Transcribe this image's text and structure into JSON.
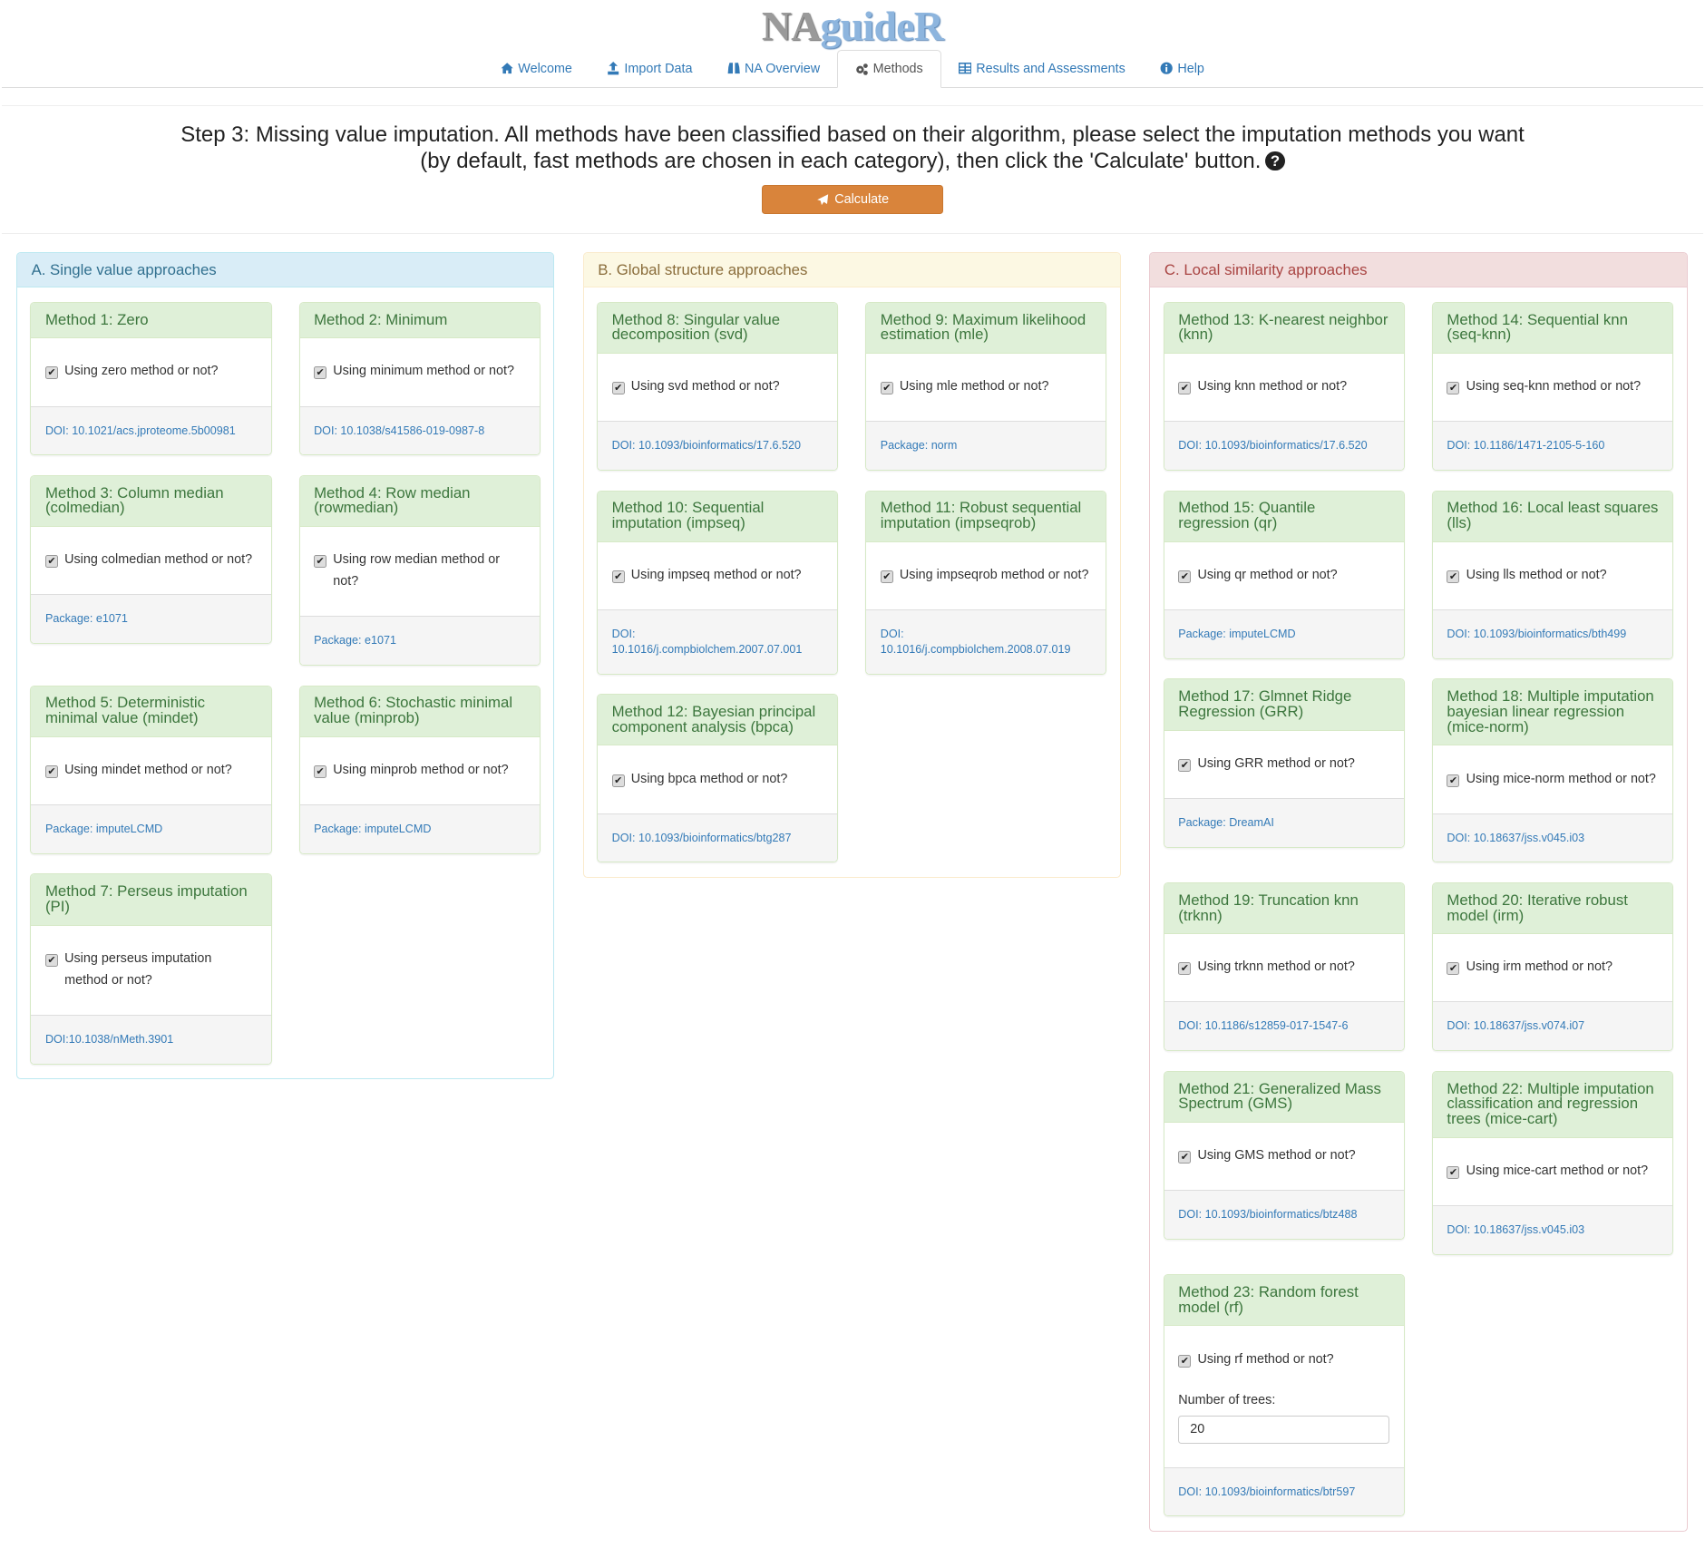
{
  "app": {
    "logo_part1": "NA",
    "logo_part2": "guideR"
  },
  "tabs": [
    {
      "label": "Welcome",
      "icon": "home-icon"
    },
    {
      "label": "Import Data",
      "icon": "upload-icon"
    },
    {
      "label": "NA Overview",
      "icon": "binoculars-icon"
    },
    {
      "label": "Methods",
      "icon": "cogs-icon",
      "active": true
    },
    {
      "label": "Results and Assessments",
      "icon": "table-icon"
    },
    {
      "label": "Help",
      "icon": "info-circle-icon"
    }
  ],
  "step": {
    "text": "Step 3: Missing value imputation. All methods have been classified based on their algorithm, please select the imputation methods you want (by default, fast methods are chosen in each category), then click the 'Calculate' button.",
    "help_icon": "question-circle-icon"
  },
  "calculate": {
    "label": "Calculate",
    "icon": "paper-plane-icon",
    "color": "#d9843b"
  },
  "panels": [
    {
      "title": "A. Single value approaches",
      "bg": "#d9edf7",
      "border": "#bce8f1",
      "color": "#31708f",
      "cards": [
        {
          "title": "Method 1: Zero",
          "check": "Using zero method or not?",
          "checked": true,
          "ref": "DOI: 10.1021/acs.jproteome.5b00981"
        },
        {
          "title": "Method 2: Minimum",
          "check": "Using minimum method or not?",
          "checked": true,
          "ref": "DOI: 10.1038/s41586-019-0987-8"
        },
        {
          "title": "Method 3: Column median (colmedian)",
          "check": "Using colmedian method or not?",
          "checked": true,
          "ref": "Package: e1071"
        },
        {
          "title": "Method 4: Row median (rowmedian)",
          "check": "Using row median method or not?",
          "checked": true,
          "ref": "Package: e1071"
        },
        {
          "title": "Method 5: Deterministic minimal value (mindet)",
          "check": "Using mindet method or not?",
          "checked": true,
          "ref": "Package: imputeLCMD"
        },
        {
          "title": "Method 6: Stochastic minimal value (minprob)",
          "check": "Using minprob method or not?",
          "checked": true,
          "ref": "Package: imputeLCMD"
        },
        {
          "title": "Method 7: Perseus imputation (PI)",
          "check": "Using perseus imputation method or not?",
          "checked": true,
          "ref": "DOI:10.1038/nMeth.3901"
        }
      ]
    },
    {
      "title": "B. Global structure approaches",
      "bg": "#fcf8e3",
      "border": "#faebcc",
      "color": "#8a6d3b",
      "cards": [
        {
          "title": "Method 8: Singular value decomposition (svd)",
          "check": "Using svd method or not?",
          "checked": true,
          "ref": "DOI: 10.1093/bioinformatics/17.6.520"
        },
        {
          "title": "Method 9: Maximum likelihood estimation (mle)",
          "check": "Using mle method or not?",
          "checked": true,
          "ref": "Package: norm"
        },
        {
          "title": "Method 10: Sequential imputation (impseq)",
          "check": "Using impseq method or not?",
          "checked": true,
          "ref": "DOI: 10.1016/j.compbiolchem.2007.07.001"
        },
        {
          "title": "Method 11: Robust sequential imputation (impseqrob)",
          "check": "Using impseqrob method or not?",
          "checked": true,
          "ref": "DOI: 10.1016/j.compbiolchem.2008.07.019"
        },
        {
          "title": "Method 12: Bayesian principal component analysis (bpca)",
          "check": "Using bpca method or not?",
          "checked": true,
          "ref": "DOI: 10.1093/bioinformatics/btg287"
        }
      ]
    },
    {
      "title": "C. Local similarity approaches",
      "bg": "#f2dede",
      "border": "#ebccd1",
      "color": "#a94442",
      "cards": [
        {
          "title": "Method 13: K-nearest neighbor (knn)",
          "check": "Using knn method or not?",
          "checked": true,
          "ref": "DOI: 10.1093/bioinformatics/17.6.520"
        },
        {
          "title": "Method 14: Sequential knn (seq-knn)",
          "check": "Using seq-knn method or not?",
          "checked": true,
          "ref": "DOI: 10.1186/1471-2105-5-160"
        },
        {
          "title": "Method 15: Quantile regression (qr)",
          "check": "Using qr method or not?",
          "checked": true,
          "ref": "Package: imputeLCMD"
        },
        {
          "title": "Method 16: Local least squares (lls)",
          "check": "Using lls method or not?",
          "checked": true,
          "ref": "DOI: 10.1093/bioinformatics/bth499"
        },
        {
          "title": "Method 17: Glmnet Ridge Regression (GRR)",
          "check": "Using GRR method or not?",
          "checked": true,
          "ref": "Package: DreamAI"
        },
        {
          "title": "Method 18: Multiple imputation bayesian linear regression (mice-norm)",
          "check": "Using mice-norm method or not?",
          "checked": true,
          "ref": "DOI: 10.18637/jss.v045.i03"
        },
        {
          "title": "Method 19: Truncation knn (trknn)",
          "check": "Using trknn method or not?",
          "checked": true,
          "ref": "DOI: 10.1186/s12859-017-1547-6"
        },
        {
          "title": "Method 20: Iterative robust model (irm)",
          "check": "Using irm method or not?",
          "checked": true,
          "ref": "DOI: 10.18637/jss.v074.i07"
        },
        {
          "title": "Method 21: Generalized Mass Spectrum (GMS)",
          "check": "Using GMS method or not?",
          "checked": true,
          "ref": "DOI: 10.1093/bioinformatics/btz488"
        },
        {
          "title": "Method 22: Multiple imputation classification and regression trees (mice-cart)",
          "check": "Using mice-cart method or not?",
          "checked": true,
          "ref": "DOI: 10.18637/jss.v045.i03"
        },
        {
          "title": "Method 23: Random forest model (rf)",
          "check": "Using rf method or not?",
          "checked": true,
          "ntrees_label": "Number of trees:",
          "ntrees_value": "20",
          "ref": "DOI: 10.1093/bioinformatics/btr597"
        }
      ]
    }
  ]
}
